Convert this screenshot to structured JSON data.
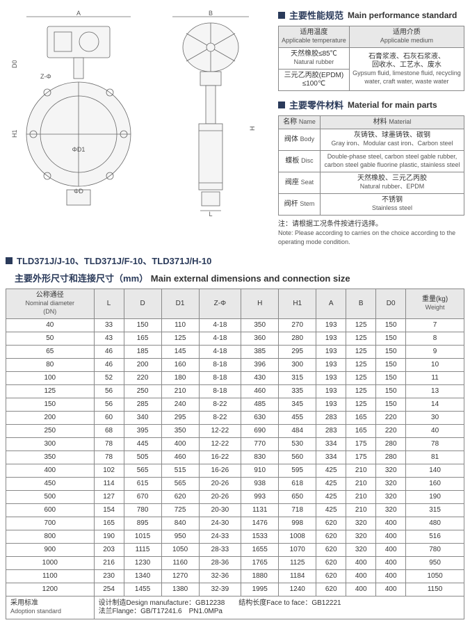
{
  "sections": {
    "perf": {
      "cn": "主要性能规范",
      "en": "Main performance standard"
    },
    "mat": {
      "cn": "主要零件材料",
      "en": "Material for main parts"
    },
    "dim_model": "TLD371J/J-10、TLD371J/F-10、TLD371J/H-10",
    "dim_cn": "主要外形尺寸和连接尺寸（mm）",
    "dim_en": "Main external dimensions and connection size"
  },
  "perf": {
    "h1": {
      "cn": "适用温度",
      "en": "Applicable temperature"
    },
    "h2": {
      "cn": "适用介质",
      "en": "Applicable medium"
    },
    "r1c1": {
      "a": "天然橡胶≤85℃",
      "b": "Natural rubber"
    },
    "r1c2": {
      "a": "石膏浆液、石灰石浆液、",
      "b": "回收水、工艺水、废水"
    },
    "r2c1": {
      "a": "三元乙丙胶(EPDM)",
      "b": "≤100℃"
    },
    "r2c2": {
      "a": "Gypsum fluid, limestone fluid, recycling",
      "b": "water, craft water, waste water"
    }
  },
  "mat": {
    "h_name_cn": "名称",
    "h_name_en": "Name",
    "h_mat_cn": "材料",
    "h_mat_en": "Material",
    "rows": [
      {
        "n_cn": "阀体",
        "n_en": "Body",
        "m_cn": "灰铸铁、球墨铸铁、碳钢",
        "m_en": "Gray iron、Modular cast iron、Carbon steel"
      },
      {
        "n_cn": "蝶板",
        "n_en": "Disc",
        "m_cn": "",
        "m_en": "Double-phase steel, carbon steel gable rubber, carbon steel gable fluorine plastic, stainless steel"
      },
      {
        "n_cn": "阀座",
        "n_en": "Seat",
        "m_cn": "天然橡胶、三元乙丙胶",
        "m_en": "Natural rubber、EPDM"
      },
      {
        "n_cn": "阀杆",
        "n_en": "Stem",
        "m_cn": "不锈钢",
        "m_en": "Stainless steel"
      }
    ]
  },
  "note": {
    "cn": "注：请根据工况条件按进行选择。",
    "en": "Note: Please according to carries on the choice according to the operating mode condition."
  },
  "dim": {
    "headers": [
      {
        "cn": "公称通径",
        "en": "Nominal diameter",
        "sub": "(DN)"
      },
      {
        "t": "L"
      },
      {
        "t": "D"
      },
      {
        "t": "D1"
      },
      {
        "t": "Z-Φ"
      },
      {
        "t": "H"
      },
      {
        "t": "H1"
      },
      {
        "t": "A"
      },
      {
        "t": "B"
      },
      {
        "t": "D0"
      },
      {
        "cn": "重量(kg)",
        "en": "Weight"
      }
    ],
    "rows": [
      [
        "40",
        "33",
        "150",
        "110",
        "4-18",
        "350",
        "270",
        "193",
        "125",
        "150",
        "7"
      ],
      [
        "50",
        "43",
        "165",
        "125",
        "4-18",
        "360",
        "280",
        "193",
        "125",
        "150",
        "8"
      ],
      [
        "65",
        "46",
        "185",
        "145",
        "4-18",
        "385",
        "295",
        "193",
        "125",
        "150",
        "9"
      ],
      [
        "80",
        "46",
        "200",
        "160",
        "8-18",
        "396",
        "300",
        "193",
        "125",
        "150",
        "10"
      ],
      [
        "100",
        "52",
        "220",
        "180",
        "8-18",
        "430",
        "315",
        "193",
        "125",
        "150",
        "11"
      ],
      [
        "125",
        "56",
        "250",
        "210",
        "8-18",
        "460",
        "335",
        "193",
        "125",
        "150",
        "13"
      ],
      [
        "150",
        "56",
        "285",
        "240",
        "8-22",
        "485",
        "345",
        "193",
        "125",
        "150",
        "14"
      ],
      [
        "200",
        "60",
        "340",
        "295",
        "8-22",
        "630",
        "455",
        "283",
        "165",
        "220",
        "30"
      ],
      [
        "250",
        "68",
        "395",
        "350",
        "12-22",
        "690",
        "484",
        "283",
        "165",
        "220",
        "40"
      ],
      [
        "300",
        "78",
        "445",
        "400",
        "12-22",
        "770",
        "530",
        "334",
        "175",
        "280",
        "78"
      ],
      [
        "350",
        "78",
        "505",
        "460",
        "16-22",
        "830",
        "560",
        "334",
        "175",
        "280",
        "81"
      ],
      [
        "400",
        "102",
        "565",
        "515",
        "16-26",
        "910",
        "595",
        "425",
        "210",
        "320",
        "140"
      ],
      [
        "450",
        "114",
        "615",
        "565",
        "20-26",
        "938",
        "618",
        "425",
        "210",
        "320",
        "160"
      ],
      [
        "500",
        "127",
        "670",
        "620",
        "20-26",
        "993",
        "650",
        "425",
        "210",
        "320",
        "190"
      ],
      [
        "600",
        "154",
        "780",
        "725",
        "20-30",
        "1131",
        "718",
        "425",
        "210",
        "320",
        "315"
      ],
      [
        "700",
        "165",
        "895",
        "840",
        "24-30",
        "1476",
        "998",
        "620",
        "320",
        "400",
        "480"
      ],
      [
        "800",
        "190",
        "1015",
        "950",
        "24-33",
        "1533",
        "1008",
        "620",
        "320",
        "400",
        "516"
      ],
      [
        "900",
        "203",
        "1115",
        "1050",
        "28-33",
        "1655",
        "1070",
        "620",
        "320",
        "400",
        "780"
      ],
      [
        "1000",
        "216",
        "1230",
        "1160",
        "28-36",
        "1765",
        "1125",
        "620",
        "400",
        "400",
        "950"
      ],
      [
        "1100",
        "230",
        "1340",
        "1270",
        "32-36",
        "1880",
        "1184",
        "620",
        "400",
        "400",
        "1050"
      ],
      [
        "1200",
        "254",
        "1455",
        "1380",
        "32-39",
        "1995",
        "1240",
        "620",
        "400",
        "400",
        "1150"
      ]
    ],
    "footer": {
      "label_cn": "采用标准",
      "label_en": "Adoption standard",
      "l1": "设计制造Design manufacture：GB12238　　结构长度Face to face：GB12221",
      "l2": "法兰Flange：GB/T17241.6　PN1.0MPa"
    }
  }
}
